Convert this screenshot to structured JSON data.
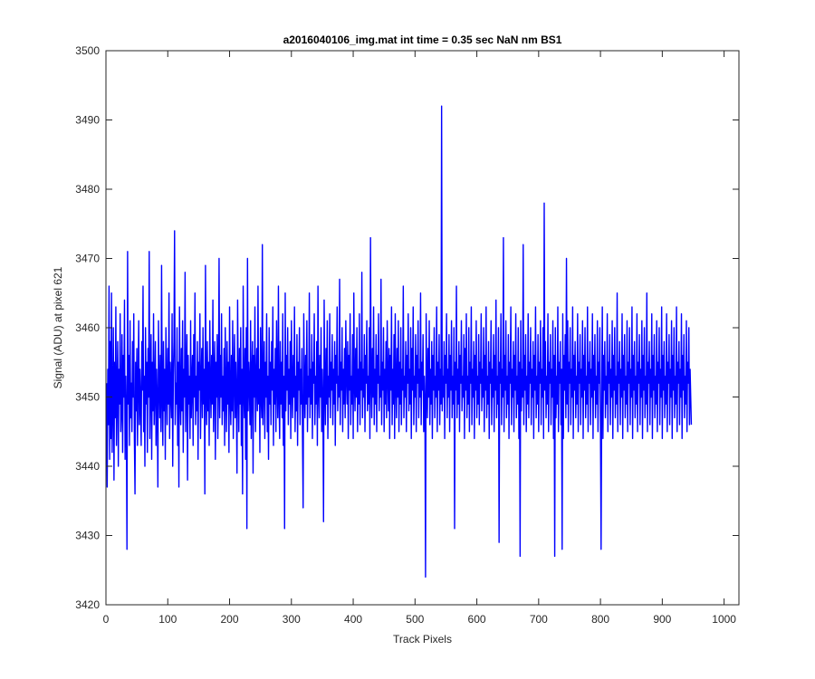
{
  "chart_data": {
    "type": "line",
    "title": "a2016040106_img.mat int time = 0.35 sec  NaN nm BS1",
    "xlabel": "Track Pixels",
    "ylabel": "Signal (ADU) at pixel 621",
    "xlim": [
      0,
      1024
    ],
    "ylim": [
      3420,
      3500
    ],
    "xticks": [
      0,
      100,
      200,
      300,
      400,
      500,
      600,
      700,
      800,
      900,
      1000
    ],
    "yticks": [
      3420,
      3430,
      3440,
      3450,
      3460,
      3470,
      3480,
      3490,
      3500
    ],
    "grid": false,
    "legend": "none",
    "line_color": "#0000ff",
    "series": [
      {
        "x_start": 1,
        "x_step": 1,
        "values": [
          3452,
          3437,
          3454,
          3446,
          3466,
          3441,
          3458,
          3444,
          3465,
          3442,
          3449,
          3460,
          3438,
          3455,
          3447,
          3463,
          3443,
          3451,
          3458,
          3440,
          3454,
          3449,
          3462,
          3445,
          3448,
          3459,
          3442,
          3456,
          3450,
          3464,
          3441,
          3453,
          3447,
          3428,
          3471,
          3449,
          3456,
          3443,
          3461,
          3447,
          3452,
          3445,
          3458,
          3450,
          3462,
          3444,
          3436,
          3455,
          3448,
          3457,
          3443,
          3452,
          3461,
          3446,
          3454,
          3449,
          3443,
          3458,
          3451,
          3466,
          3445,
          3453,
          3440,
          3460,
          3449,
          3455,
          3442,
          3457,
          3450,
          3471,
          3444,
          3452,
          3459,
          3441,
          3455,
          3448,
          3462,
          3446,
          3451,
          3458,
          3443,
          3454,
          3449,
          3437,
          3461,
          3452,
          3447,
          3456,
          3445,
          3469,
          3450,
          3443,
          3458,
          3448,
          3454,
          3441,
          3460,
          3452,
          3446,
          3457,
          3449,
          3465,
          3444,
          3455,
          3451,
          3447,
          3462,
          3440,
          3453,
          3458,
          3474,
          3446,
          3452,
          3449,
          3460,
          3443,
          3455,
          3437,
          3463,
          3451,
          3446,
          3457,
          3448,
          3461,
          3442,
          3454,
          3450,
          3468,
          3445,
          3452,
          3459,
          3438,
          3456,
          3449,
          3453,
          3444,
          3461,
          3447,
          3452,
          3456,
          3443,
          3459,
          3450,
          3465,
          3446,
          3453,
          3448,
          3458,
          3441,
          3455,
          3451,
          3462,
          3444,
          3452,
          3457,
          3447,
          3460,
          3449,
          3454,
          3436,
          3469,
          3451,
          3446,
          3458,
          3448,
          3455,
          3443,
          3461,
          3452,
          3447,
          3456,
          3449,
          3464,
          3445,
          3453,
          3458,
          3441,
          3455,
          3450,
          3459,
          3444,
          3452,
          3470,
          3447,
          3456,
          3450,
          3462,
          3446,
          3453,
          3448,
          3457,
          3443,
          3460,
          3451,
          3445,
          3458,
          3449,
          3455,
          3442,
          3463,
          3450,
          3446,
          3456,
          3448,
          3461,
          3444,
          3453,
          3459,
          3447,
          3455,
          3450,
          3439,
          3464,
          3452,
          3445,
          3457,
          3449,
          3460,
          3443,
          3454,
          3436,
          3466,
          3451,
          3447,
          3457,
          3441,
          3460,
          3431,
          3470,
          3448,
          3455,
          3452,
          3446,
          3461,
          3444,
          3453,
          3458,
          3439,
          3456,
          3450,
          3463,
          3445,
          3452,
          3457,
          3448,
          3466,
          3449,
          3454,
          3442,
          3460,
          3450,
          3447,
          3472,
          3446,
          3452,
          3458,
          3444,
          3455,
          3450,
          3462,
          3445,
          3453,
          3441,
          3460,
          3449,
          3455,
          3446,
          3458,
          3451,
          3463,
          3443,
          3454,
          3449,
          3457,
          3445,
          3461,
          3452,
          3447,
          3466,
          3450,
          3444,
          3458,
          3449,
          3455,
          3447,
          3462,
          3443,
          3453,
          3431,
          3465,
          3448,
          3456,
          3451,
          3460,
          3446,
          3454,
          3449,
          3458,
          3444,
          3461,
          3452,
          3447,
          3456,
          3450,
          3463,
          3445,
          3453,
          3448,
          3459,
          3443,
          3455,
          3451,
          3460,
          3446,
          3454,
          3449,
          3457,
          3444,
          3434,
          3462,
          3452,
          3447,
          3456,
          3449,
          3461,
          3445,
          3453,
          3450,
          3465,
          3447,
          3454,
          3449,
          3459,
          3444,
          3455,
          3452,
          3462,
          3446,
          3453,
          3449,
          3458,
          3443,
          3466,
          3451,
          3447,
          3456,
          3450,
          3460,
          3445,
          3454,
          3449,
          3432,
          3464,
          3452,
          3446,
          3457,
          3449,
          3461,
          3444,
          3453,
          3450,
          3462,
          3447,
          3455,
          3451,
          3459,
          3446,
          3454,
          3449,
          3458,
          3443,
          3456,
          3452,
          3463,
          3448,
          3453,
          3450,
          3467,
          3446,
          3455,
          3451,
          3460,
          3445,
          3454,
          3449,
          3457,
          3447,
          3461,
          3453,
          3449,
          3458,
          3444,
          3456,
          3451,
          3462,
          3446,
          3453,
          3449,
          3459,
          3444,
          3465,
          3452,
          3448,
          3457,
          3450,
          3460,
          3445,
          3454,
          3449,
          3462,
          3446,
          3455,
          3451,
          3468,
          3447,
          3454,
          3450,
          3459,
          3445,
          3456,
          3452,
          3461,
          3448,
          3453,
          3449,
          3460,
          3444,
          3473,
          3452,
          3447,
          3457,
          3450,
          3463,
          3446,
          3454,
          3449,
          3459,
          3445,
          3456,
          3452,
          3462,
          3448,
          3453,
          3450,
          3467,
          3446,
          3455,
          3451,
          3460,
          3445,
          3454,
          3449,
          3458,
          3447,
          3461,
          3453,
          3448,
          3457,
          3444,
          3456,
          3451,
          3463,
          3446,
          3454,
          3449,
          3459,
          3444,
          3462,
          3452,
          3447,
          3457,
          3450,
          3461,
          3445,
          3455,
          3449,
          3460,
          3446,
          3454,
          3451,
          3466,
          3447,
          3453,
          3450,
          3458,
          3445,
          3456,
          3452,
          3462,
          3448,
          3454,
          3449,
          3460,
          3444,
          3457,
          3451,
          3463,
          3446,
          3453,
          3450,
          3459,
          3445,
          3456,
          3452,
          3461,
          3447,
          3454,
          3450,
          3465,
          3446,
          3455,
          3451,
          3459,
          3445,
          3453,
          3449,
          3424,
          3462,
          3452,
          3447,
          3457,
          3450,
          3461,
          3446,
          3454,
          3449,
          3458,
          3444,
          3456,
          3451,
          3460,
          3447,
          3453,
          3450,
          3463,
          3445,
          3455,
          3451,
          3459,
          3446,
          3454,
          3449,
          3492,
          3448,
          3453,
          3450,
          3458,
          3444,
          3456,
          3452,
          3462,
          3447,
          3454,
          3450,
          3459,
          3445,
          3456,
          3451,
          3461,
          3447,
          3453,
          3449,
          3460,
          3431,
          3455,
          3451,
          3466,
          3447,
          3454,
          3449,
          3458,
          3445,
          3456,
          3452,
          3461,
          3448,
          3453,
          3450,
          3459,
          3444,
          3457,
          3451,
          3462,
          3447,
          3453,
          3449,
          3460,
          3445,
          3455,
          3452,
          3463,
          3446,
          3454,
          3450,
          3458,
          3444,
          3456,
          3451,
          3461,
          3447,
          3453,
          3449,
          3459,
          3446,
          3455,
          3452,
          3462,
          3448,
          3454,
          3450,
          3460,
          3445,
          3456,
          3451,
          3463,
          3447,
          3453,
          3449,
          3458,
          3444,
          3455,
          3452,
          3461,
          3446,
          3454,
          3450,
          3459,
          3445,
          3456,
          3451,
          3464,
          3447,
          3453,
          3449,
          3460,
          3429,
          3455,
          3452,
          3462,
          3446,
          3454,
          3450,
          3473,
          3445,
          3456,
          3451,
          3461,
          3447,
          3453,
          3449,
          3459,
          3444,
          3455,
          3452,
          3463,
          3446,
          3454,
          3450,
          3458,
          3445,
          3456,
          3451,
          3462,
          3447,
          3453,
          3449,
          3460,
          3444,
          3455,
          3427,
          3461,
          3448,
          3454,
          3450,
          3472,
          3446,
          3456,
          3451,
          3459,
          3445,
          3453,
          3449,
          3462,
          3447,
          3455,
          3452,
          3460,
          3446,
          3454,
          3450,
          3458,
          3444,
          3456,
          3451,
          3463,
          3447,
          3453,
          3449,
          3459,
          3445,
          3455,
          3452,
          3461,
          3446,
          3454,
          3450,
          3460,
          3444,
          3478,
          3451,
          3458,
          3447,
          3453,
          3449,
          3462,
          3445,
          3455,
          3452,
          3459,
          3446,
          3454,
          3450,
          3461,
          3444,
          3456,
          3427,
          3460,
          3447,
          3453,
          3449,
          3463,
          3445,
          3455,
          3452,
          3458,
          3446,
          3454,
          3428,
          3462,
          3444,
          3456,
          3451,
          3459,
          3447,
          3470,
          3449,
          3461,
          3445,
          3455,
          3452,
          3460,
          3446,
          3454,
          3450,
          3463,
          3444,
          3456,
          3451,
          3458,
          3447,
          3453,
          3449,
          3462,
          3445,
          3455,
          3452,
          3459,
          3446,
          3454,
          3450,
          3461,
          3444,
          3456,
          3451,
          3460,
          3447,
          3453,
          3449,
          3463,
          3445,
          3455,
          3452,
          3458,
          3446,
          3454,
          3450,
          3462,
          3444,
          3456,
          3451,
          3459,
          3447,
          3453,
          3449,
          3461,
          3445,
          3455,
          3452,
          3460,
          3446,
          3428,
          3450,
          3463,
          3444,
          3456,
          3451,
          3458,
          3447,
          3453,
          3449,
          3462,
          3445,
          3455,
          3452,
          3459,
          3446,
          3454,
          3450,
          3461,
          3444,
          3456,
          3451,
          3460,
          3447,
          3453,
          3449,
          3465,
          3445,
          3455,
          3452,
          3458,
          3446,
          3454,
          3450,
          3462,
          3444,
          3456,
          3451,
          3459,
          3447,
          3453,
          3449,
          3461,
          3445,
          3455,
          3452,
          3460,
          3446,
          3454,
          3450,
          3463,
          3444,
          3456,
          3451,
          3458,
          3447,
          3453,
          3449,
          3462,
          3445,
          3455,
          3452,
          3459,
          3446,
          3454,
          3450,
          3461,
          3444,
          3456,
          3451,
          3460,
          3447,
          3453,
          3449,
          3465,
          3445,
          3455,
          3452,
          3458,
          3446,
          3454,
          3450,
          3462,
          3444,
          3456,
          3451,
          3459,
          3447,
          3453,
          3449,
          3461,
          3445,
          3455,
          3452,
          3460,
          3446,
          3454,
          3450,
          3463,
          3444,
          3456,
          3451,
          3458,
          3447,
          3453,
          3449,
          3462,
          3445,
          3455,
          3452,
          3459,
          3446,
          3454,
          3450,
          3461,
          3444,
          3456,
          3451,
          3460,
          3447,
          3453,
          3449,
          3463,
          3445,
          3455,
          3452,
          3458,
          3446,
          3454,
          3450,
          3462,
          3444,
          3456,
          3451,
          3459,
          3447,
          3453,
          3449,
          3461,
          3445,
          3455,
          3452,
          3460,
          3446,
          3454,
          3450,
          3446
        ]
      }
    ]
  }
}
